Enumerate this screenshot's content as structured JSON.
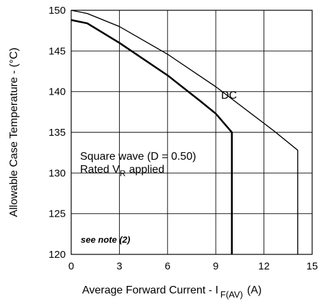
{
  "chart_data": {
    "type": "line",
    "xlabel": "Average Forward Current - I",
    "xlabel_sub": "F(AV)",
    "xlabel_unit": "(A)",
    "ylabel": "Allowable Case Temperature - (°C)",
    "xlim": [
      0,
      15
    ],
    "ylim": [
      120,
      150
    ],
    "x_ticks": [
      0,
      3,
      6,
      9,
      12,
      15
    ],
    "y_ticks": [
      120,
      125,
      130,
      135,
      140,
      145,
      150
    ],
    "grid": true,
    "legend": "none",
    "annotations": {
      "dc": "DC",
      "square_wave": "Square wave (D = 0.50)",
      "rated_prefix": "Rated V",
      "rated_sub": "R",
      "rated_suffix": "applied",
      "note": "see note (2)"
    },
    "series": [
      {
        "id": "dc",
        "points": [
          [
            0,
            150
          ],
          [
            1,
            149.6
          ],
          [
            3,
            148.0
          ],
          [
            6,
            144.6
          ],
          [
            9,
            140.6
          ],
          [
            11,
            137.6
          ],
          [
            12.6,
            135.2
          ],
          [
            14.1,
            132.8
          ],
          [
            14.1,
            120
          ]
        ],
        "stroke_width": 1.4
      },
      {
        "id": "square",
        "points": [
          [
            0,
            148.8
          ],
          [
            1,
            148.4
          ],
          [
            3,
            146.0
          ],
          [
            6,
            142.0
          ],
          [
            8,
            138.9
          ],
          [
            9,
            137.3
          ],
          [
            10,
            135.0
          ],
          [
            10,
            120
          ]
        ],
        "stroke_width": 2.6
      }
    ]
  }
}
